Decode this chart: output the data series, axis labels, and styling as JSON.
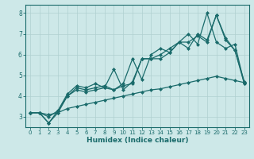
{
  "xlabel": "Humidex (Indice chaleur)",
  "bg_color": "#cde8e8",
  "grid_color": "#b0d0d0",
  "line_color": "#1a6b6b",
  "xlim": [
    -0.5,
    23.5
  ],
  "ylim": [
    2.5,
    8.4
  ],
  "yticks": [
    3,
    4,
    5,
    6,
    7,
    8
  ],
  "xticks": [
    0,
    1,
    2,
    3,
    4,
    5,
    6,
    7,
    8,
    9,
    10,
    11,
    12,
    13,
    14,
    15,
    16,
    17,
    18,
    19,
    20,
    21,
    22,
    23
  ],
  "series": [
    {
      "x": [
        0,
        1,
        2,
        3,
        4,
        5,
        6,
        7,
        8,
        9,
        10,
        11,
        12,
        13,
        14,
        15,
        16,
        17,
        18,
        19,
        20,
        21,
        22,
        23
      ],
      "y": [
        3.2,
        3.2,
        2.7,
        3.3,
        4.1,
        4.5,
        4.4,
        4.6,
        4.4,
        5.3,
        4.3,
        4.7,
        5.8,
        5.8,
        5.8,
        6.1,
        6.6,
        6.3,
        7.0,
        6.7,
        7.9,
        6.7,
        6.2,
        4.7
      ]
    },
    {
      "x": [
        0,
        1,
        2,
        3,
        4,
        5,
        6,
        7,
        8,
        9,
        10,
        11,
        12,
        13,
        14,
        15,
        16,
        17,
        18,
        19,
        20,
        21,
        22,
        23
      ],
      "y": [
        3.2,
        3.2,
        2.7,
        3.2,
        4.0,
        4.4,
        4.3,
        4.4,
        4.5,
        4.3,
        4.6,
        5.8,
        4.8,
        6.0,
        6.3,
        6.1,
        6.6,
        7.0,
        6.5,
        8.0,
        6.6,
        6.3,
        6.5,
        4.6
      ]
    },
    {
      "x": [
        0,
        1,
        2,
        3,
        4,
        5,
        6,
        7,
        8,
        9,
        10,
        11,
        12,
        13,
        14,
        15,
        16,
        17,
        18,
        19,
        20,
        21,
        22,
        23
      ],
      "y": [
        3.2,
        3.2,
        3.0,
        3.3,
        4.0,
        4.3,
        4.2,
        4.3,
        4.4,
        4.3,
        4.5,
        4.6,
        5.8,
        5.8,
        6.0,
        6.3,
        6.6,
        6.6,
        6.9,
        6.6,
        7.9,
        6.8,
        6.2,
        4.6
      ]
    },
    {
      "x": [
        0,
        1,
        2,
        3,
        4,
        5,
        6,
        7,
        8,
        9,
        10,
        11,
        12,
        13,
        14,
        15,
        16,
        17,
        18,
        19,
        20,
        21,
        22,
        23
      ],
      "y": [
        3.2,
        3.2,
        3.1,
        3.2,
        3.4,
        3.5,
        3.6,
        3.7,
        3.8,
        3.9,
        4.0,
        4.1,
        4.2,
        4.3,
        4.35,
        4.45,
        4.55,
        4.65,
        4.75,
        4.85,
        4.95,
        4.85,
        4.75,
        4.65
      ]
    }
  ]
}
